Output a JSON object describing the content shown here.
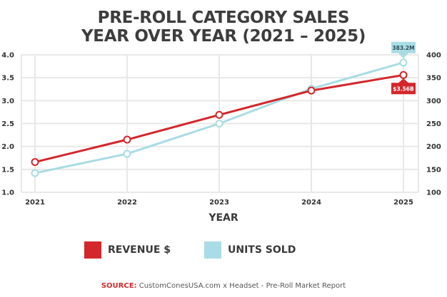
{
  "title_lines": [
    "PRE-ROLL CATEGORY SALES",
    "YEAR OVER YEAR (2021 – 2025)"
  ],
  "source": {
    "label": "SOURCE:",
    "text": "CustomConesUSA.com x Headset - Pre-Roll Market Report"
  },
  "colors": {
    "revenue": "#d3272b",
    "units": "#a9dce4",
    "grid": "#e8e8e8",
    "text": "#3a3a3a"
  },
  "chart_data": {
    "type": "line",
    "title": "PRE-ROLL CATEGORY SALES YEAR OVER YEAR (2021 – 2025)",
    "xlabel": "YEAR",
    "ylabel_left": "",
    "ylabel_right": "",
    "categories": [
      "2021",
      "2022",
      "2023",
      "2024",
      "2025"
    ],
    "y_left": {
      "range": [
        1.0,
        4.0
      ],
      "ticks": [
        "1.0",
        "1.5",
        "2.0",
        "2.5",
        "3.0",
        "3.5",
        "4.0"
      ]
    },
    "y_right": {
      "range": [
        100,
        400
      ],
      "ticks": [
        "100",
        "150",
        "200",
        "250",
        "300",
        "350",
        "400"
      ]
    },
    "grid": true,
    "legend_position": "bottom",
    "series": [
      {
        "name": "REVENUE $",
        "axis": "left",
        "values": [
          1.66,
          2.15,
          2.69,
          3.22,
          3.56
        ]
      },
      {
        "name": "UNITS SOLD",
        "axis": "right",
        "values": [
          142,
          184,
          250,
          326,
          383.2
        ]
      }
    ],
    "annotations": [
      {
        "series": "UNITS SOLD",
        "category": "2025",
        "text": "383.2M"
      },
      {
        "series": "REVENUE $",
        "category": "2025",
        "text": "$3.56B"
      }
    ]
  }
}
